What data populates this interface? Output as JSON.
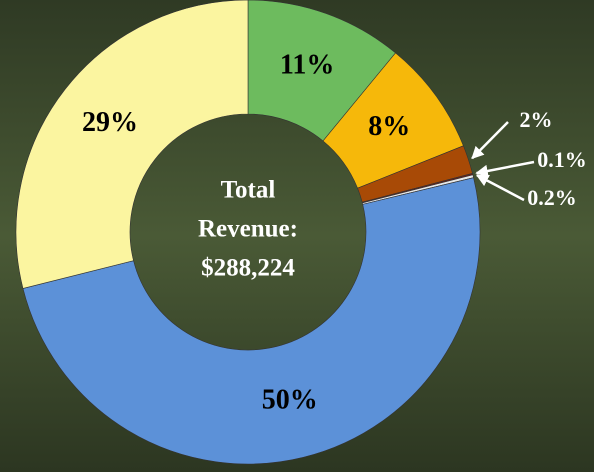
{
  "chart_data": {
    "type": "donut",
    "center_text": [
      "Total",
      "Revenue:",
      "$288,224"
    ],
    "values": [
      11,
      8,
      2,
      0.1,
      0.2,
      50,
      29
    ],
    "value_labels": [
      "11%",
      "8%",
      "2%",
      "0.1%",
      "0.2%",
      "50%",
      "29%"
    ],
    "colors": [
      "#6dbb5e",
      "#f6b80a",
      "#a84a06",
      "#7a1c10",
      "#e8e8e8",
      "#5c91d8",
      "#fbf5a0"
    ],
    "start_angle": 0,
    "direction": "clockwise"
  }
}
